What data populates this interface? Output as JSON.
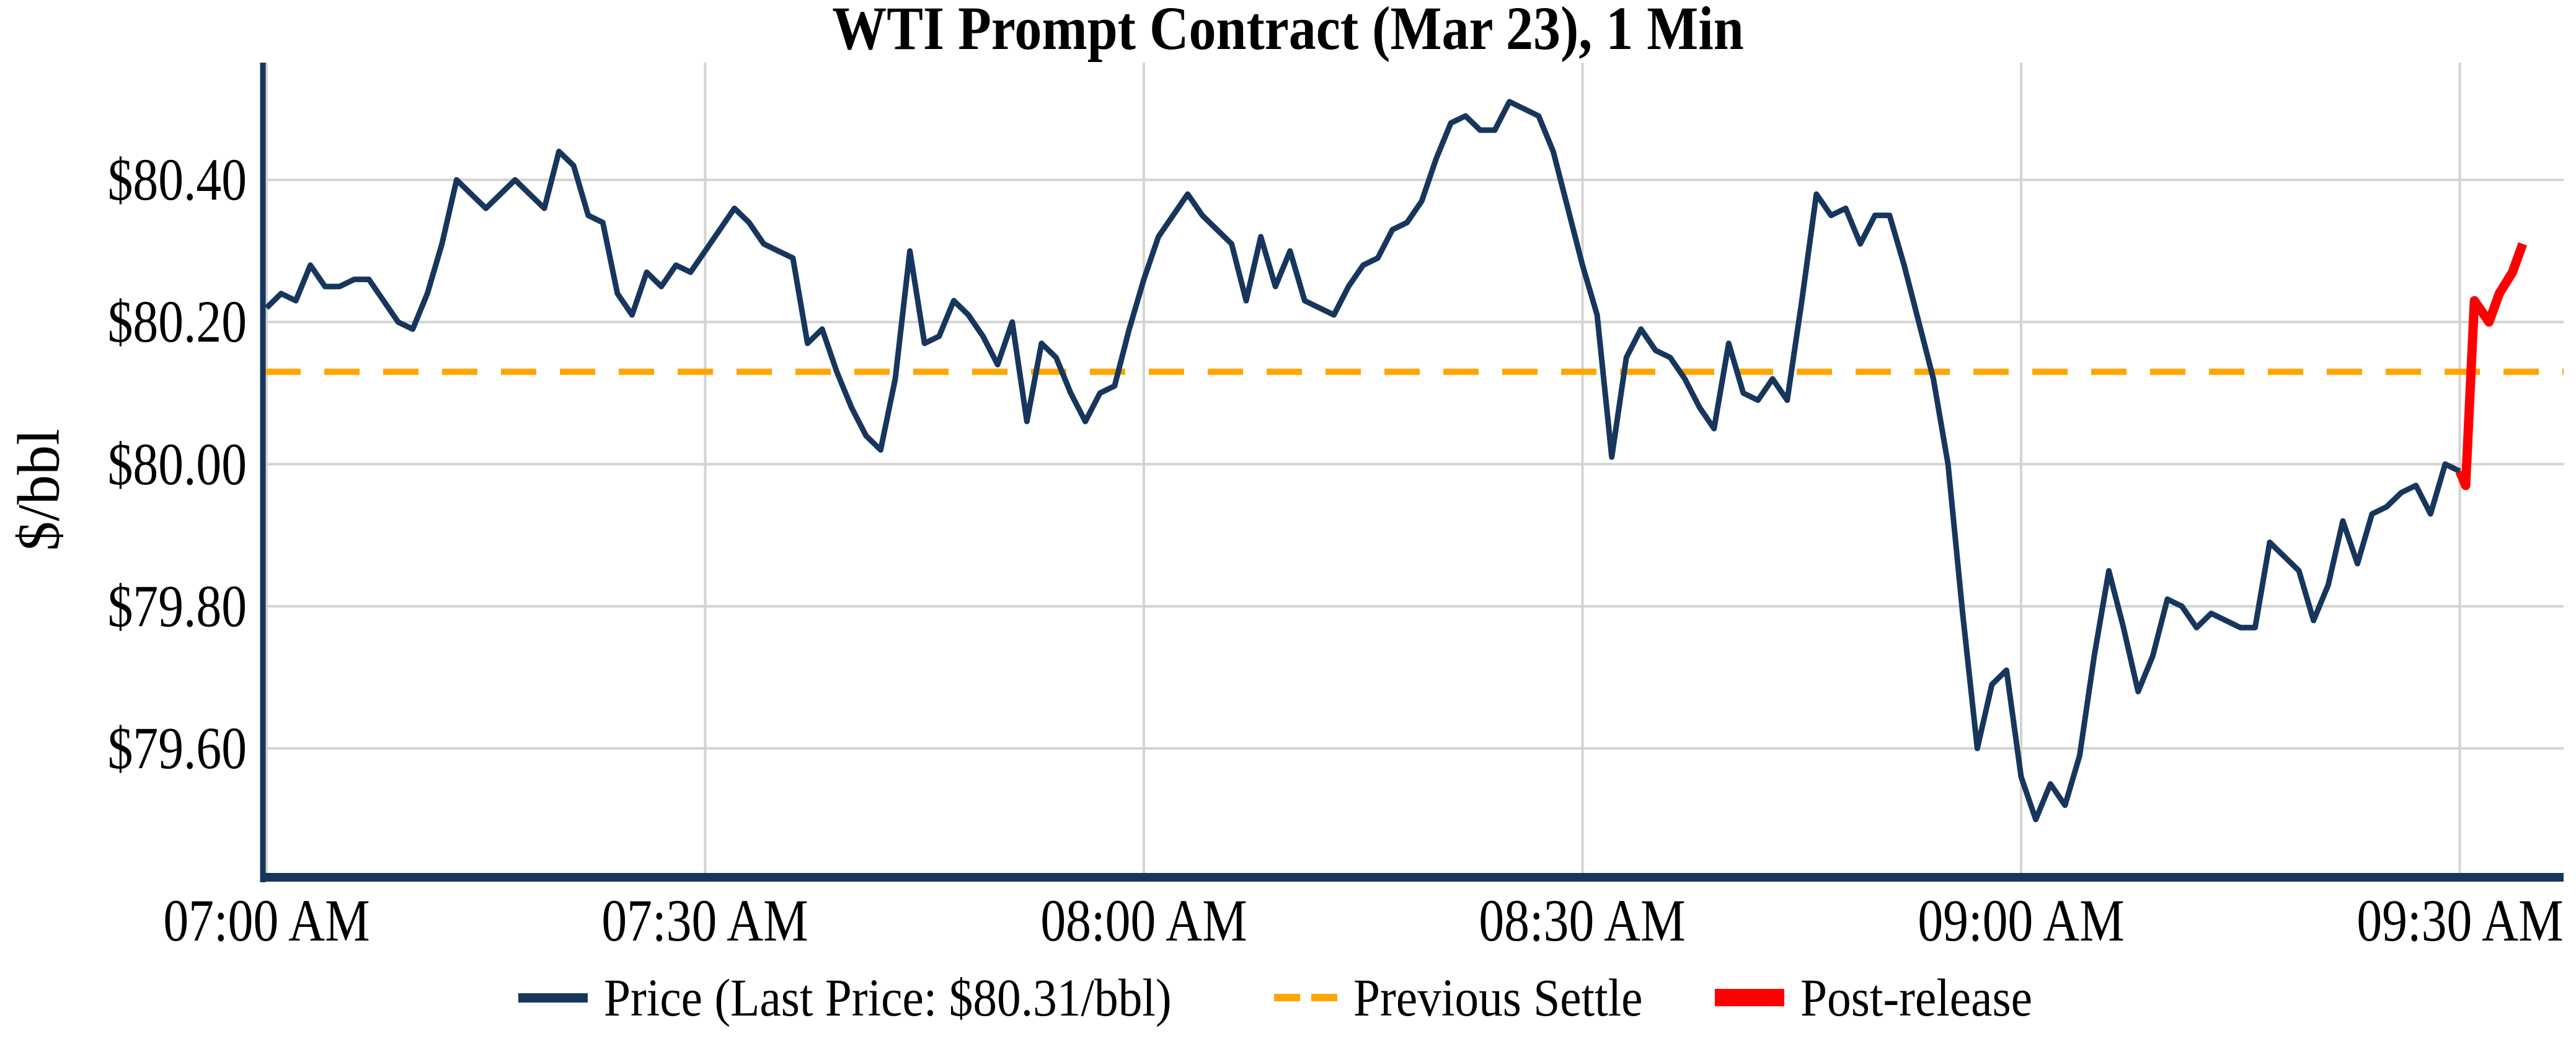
{
  "title": "WTI Prompt Contract (Mar 23), 1 Min",
  "y_axis": {
    "label": "$/bbl"
  },
  "legend": {
    "items": [
      {
        "id": "price",
        "label": "Price (Last Price: $80.31/bbl)",
        "swatch": "solid-line"
      },
      {
        "id": "previous-settle",
        "label": "Previous Settle",
        "swatch": "dashed-line"
      },
      {
        "id": "post-release",
        "label": "Post-release",
        "swatch": "thick-line"
      }
    ]
  },
  "colors": {
    "price_line": "#17365d",
    "previous_settle": "#ffa500",
    "post_release": "#ff0000",
    "gridline": "#d3d3d3",
    "spine": "#17365d",
    "background": "#ffffff",
    "text": "#000000"
  },
  "chart_data": {
    "type": "line",
    "title": "WTI Prompt Contract (Mar 23), 1 Min",
    "xlabel": "",
    "ylabel": "$/bbl",
    "x_unit": "minutes after 07:00 AM",
    "grid": true,
    "legend_position": "bottom-center",
    "xlim": [
      -0.25,
      157.1
    ],
    "ylim": [
      79.423,
      80.565
    ],
    "x_ticks": [
      {
        "t": 0,
        "label": "07:00 AM"
      },
      {
        "t": 30,
        "label": "07:30 AM"
      },
      {
        "t": 60,
        "label": "08:00 AM"
      },
      {
        "t": 90,
        "label": "08:30 AM"
      },
      {
        "t": 120,
        "label": "09:00 AM"
      },
      {
        "t": 150,
        "label": "09:30 AM"
      }
    ],
    "y_ticks": [
      {
        "v": 80.4,
        "label": "$80.40"
      },
      {
        "v": 80.2,
        "label": "$80.20"
      },
      {
        "v": 80.0,
        "label": "$80.00"
      },
      {
        "v": 79.8,
        "label": "$79.80"
      },
      {
        "v": 79.6,
        "label": "$79.60"
      }
    ],
    "previous_settle": 80.13,
    "last_price": 80.31,
    "series": [
      {
        "name": "Price",
        "color": "#17365d",
        "width": 9,
        "style": "solid",
        "points": [
          [
            0,
            80.22
          ],
          [
            1,
            80.24
          ],
          [
            2,
            80.23
          ],
          [
            3,
            80.28
          ],
          [
            4,
            80.25
          ],
          [
            5,
            80.25
          ],
          [
            6,
            80.26
          ],
          [
            7,
            80.26
          ],
          [
            8,
            80.23
          ],
          [
            9,
            80.2
          ],
          [
            10,
            80.19
          ],
          [
            11,
            80.24
          ],
          [
            12,
            80.31
          ],
          [
            13,
            80.4
          ],
          [
            14,
            80.38
          ],
          [
            15,
            80.36
          ],
          [
            16,
            80.38
          ],
          [
            17,
            80.4
          ],
          [
            18,
            80.38
          ],
          [
            19,
            80.36
          ],
          [
            20,
            80.44
          ],
          [
            21,
            80.42
          ],
          [
            22,
            80.35
          ],
          [
            23,
            80.34
          ],
          [
            24,
            80.24
          ],
          [
            25,
            80.21
          ],
          [
            26,
            80.27
          ],
          [
            27,
            80.25
          ],
          [
            28,
            80.28
          ],
          [
            29,
            80.27
          ],
          [
            30,
            80.3
          ],
          [
            31,
            80.33
          ],
          [
            32,
            80.36
          ],
          [
            33,
            80.34
          ],
          [
            34,
            80.31
          ],
          [
            35,
            80.3
          ],
          [
            36,
            80.29
          ],
          [
            37,
            80.17
          ],
          [
            38,
            80.19
          ],
          [
            39,
            80.13
          ],
          [
            40,
            80.08
          ],
          [
            41,
            80.04
          ],
          [
            42,
            80.02
          ],
          [
            43,
            80.12
          ],
          [
            44,
            80.3
          ],
          [
            45,
            80.17
          ],
          [
            46,
            80.18
          ],
          [
            47,
            80.23
          ],
          [
            48,
            80.21
          ],
          [
            49,
            80.18
          ],
          [
            50,
            80.14
          ],
          [
            51,
            80.2
          ],
          [
            52,
            80.06
          ],
          [
            53,
            80.17
          ],
          [
            54,
            80.15
          ],
          [
            55,
            80.1
          ],
          [
            56,
            80.06
          ],
          [
            57,
            80.1
          ],
          [
            58,
            80.11
          ],
          [
            59,
            80.19
          ],
          [
            60,
            80.26
          ],
          [
            61,
            80.32
          ],
          [
            62,
            80.35
          ],
          [
            63,
            80.38
          ],
          [
            64,
            80.35
          ],
          [
            65,
            80.33
          ],
          [
            66,
            80.31
          ],
          [
            67,
            80.23
          ],
          [
            68,
            80.32
          ],
          [
            69,
            80.25
          ],
          [
            70,
            80.3
          ],
          [
            71,
            80.23
          ],
          [
            72,
            80.22
          ],
          [
            73,
            80.21
          ],
          [
            74,
            80.25
          ],
          [
            75,
            80.28
          ],
          [
            76,
            80.29
          ],
          [
            77,
            80.33
          ],
          [
            78,
            80.34
          ],
          [
            79,
            80.37
          ],
          [
            80,
            80.43
          ],
          [
            81,
            80.48
          ],
          [
            82,
            80.49
          ],
          [
            83,
            80.47
          ],
          [
            84,
            80.47
          ],
          [
            85,
            80.51
          ],
          [
            86,
            80.5
          ],
          [
            87,
            80.49
          ],
          [
            88,
            80.44
          ],
          [
            89,
            80.36
          ],
          [
            90,
            80.28
          ],
          [
            91,
            80.21
          ],
          [
            92,
            80.01
          ],
          [
            93,
            80.15
          ],
          [
            94,
            80.19
          ],
          [
            95,
            80.16
          ],
          [
            96,
            80.15
          ],
          [
            97,
            80.12
          ],
          [
            98,
            80.08
          ],
          [
            99,
            80.05
          ],
          [
            100,
            80.17
          ],
          [
            101,
            80.1
          ],
          [
            102,
            80.09
          ],
          [
            103,
            80.12
          ],
          [
            104,
            80.09
          ],
          [
            105,
            80.23
          ],
          [
            106,
            80.38
          ],
          [
            107,
            80.35
          ],
          [
            108,
            80.36
          ],
          [
            109,
            80.31
          ],
          [
            110,
            80.35
          ],
          [
            111,
            80.35
          ],
          [
            112,
            80.28
          ],
          [
            113,
            80.2
          ],
          [
            114,
            80.12
          ],
          [
            115,
            80.0
          ],
          [
            116,
            79.79
          ],
          [
            117,
            79.6
          ],
          [
            118,
            79.69
          ],
          [
            119,
            79.71
          ],
          [
            120,
            79.56
          ],
          [
            121,
            79.5
          ],
          [
            122,
            79.55
          ],
          [
            123,
            79.52
          ],
          [
            124,
            79.59
          ],
          [
            125,
            79.73
          ],
          [
            126,
            79.85
          ],
          [
            127,
            79.77
          ],
          [
            128,
            79.68
          ],
          [
            129,
            79.73
          ],
          [
            130,
            79.81
          ],
          [
            131,
            79.8
          ],
          [
            132,
            79.77
          ],
          [
            133,
            79.79
          ],
          [
            134,
            79.78
          ],
          [
            135,
            79.77
          ],
          [
            136,
            79.77
          ],
          [
            137,
            79.89
          ],
          [
            138,
            79.87
          ],
          [
            139,
            79.85
          ],
          [
            140,
            79.78
          ],
          [
            141,
            79.83
          ],
          [
            142,
            79.92
          ],
          [
            143,
            79.86
          ],
          [
            144,
            79.93
          ],
          [
            145,
            79.94
          ],
          [
            146,
            79.96
          ],
          [
            147,
            79.97
          ],
          [
            148,
            79.93
          ],
          [
            149,
            80.0
          ],
          [
            150,
            79.99
          ]
        ]
      },
      {
        "name": "Previous Settle",
        "color": "#ffa500",
        "width": 10,
        "style": "dashed",
        "y": 80.13
      },
      {
        "name": "Post-release",
        "color": "#ff0000",
        "width": 15,
        "style": "solid",
        "points": [
          [
            150,
            79.99
          ],
          [
            150.4,
            79.97
          ],
          [
            151,
            80.23
          ],
          [
            152,
            80.2
          ],
          [
            152.7,
            80.24
          ],
          [
            153.6,
            80.27
          ],
          [
            154.3,
            80.31
          ]
        ]
      }
    ]
  }
}
